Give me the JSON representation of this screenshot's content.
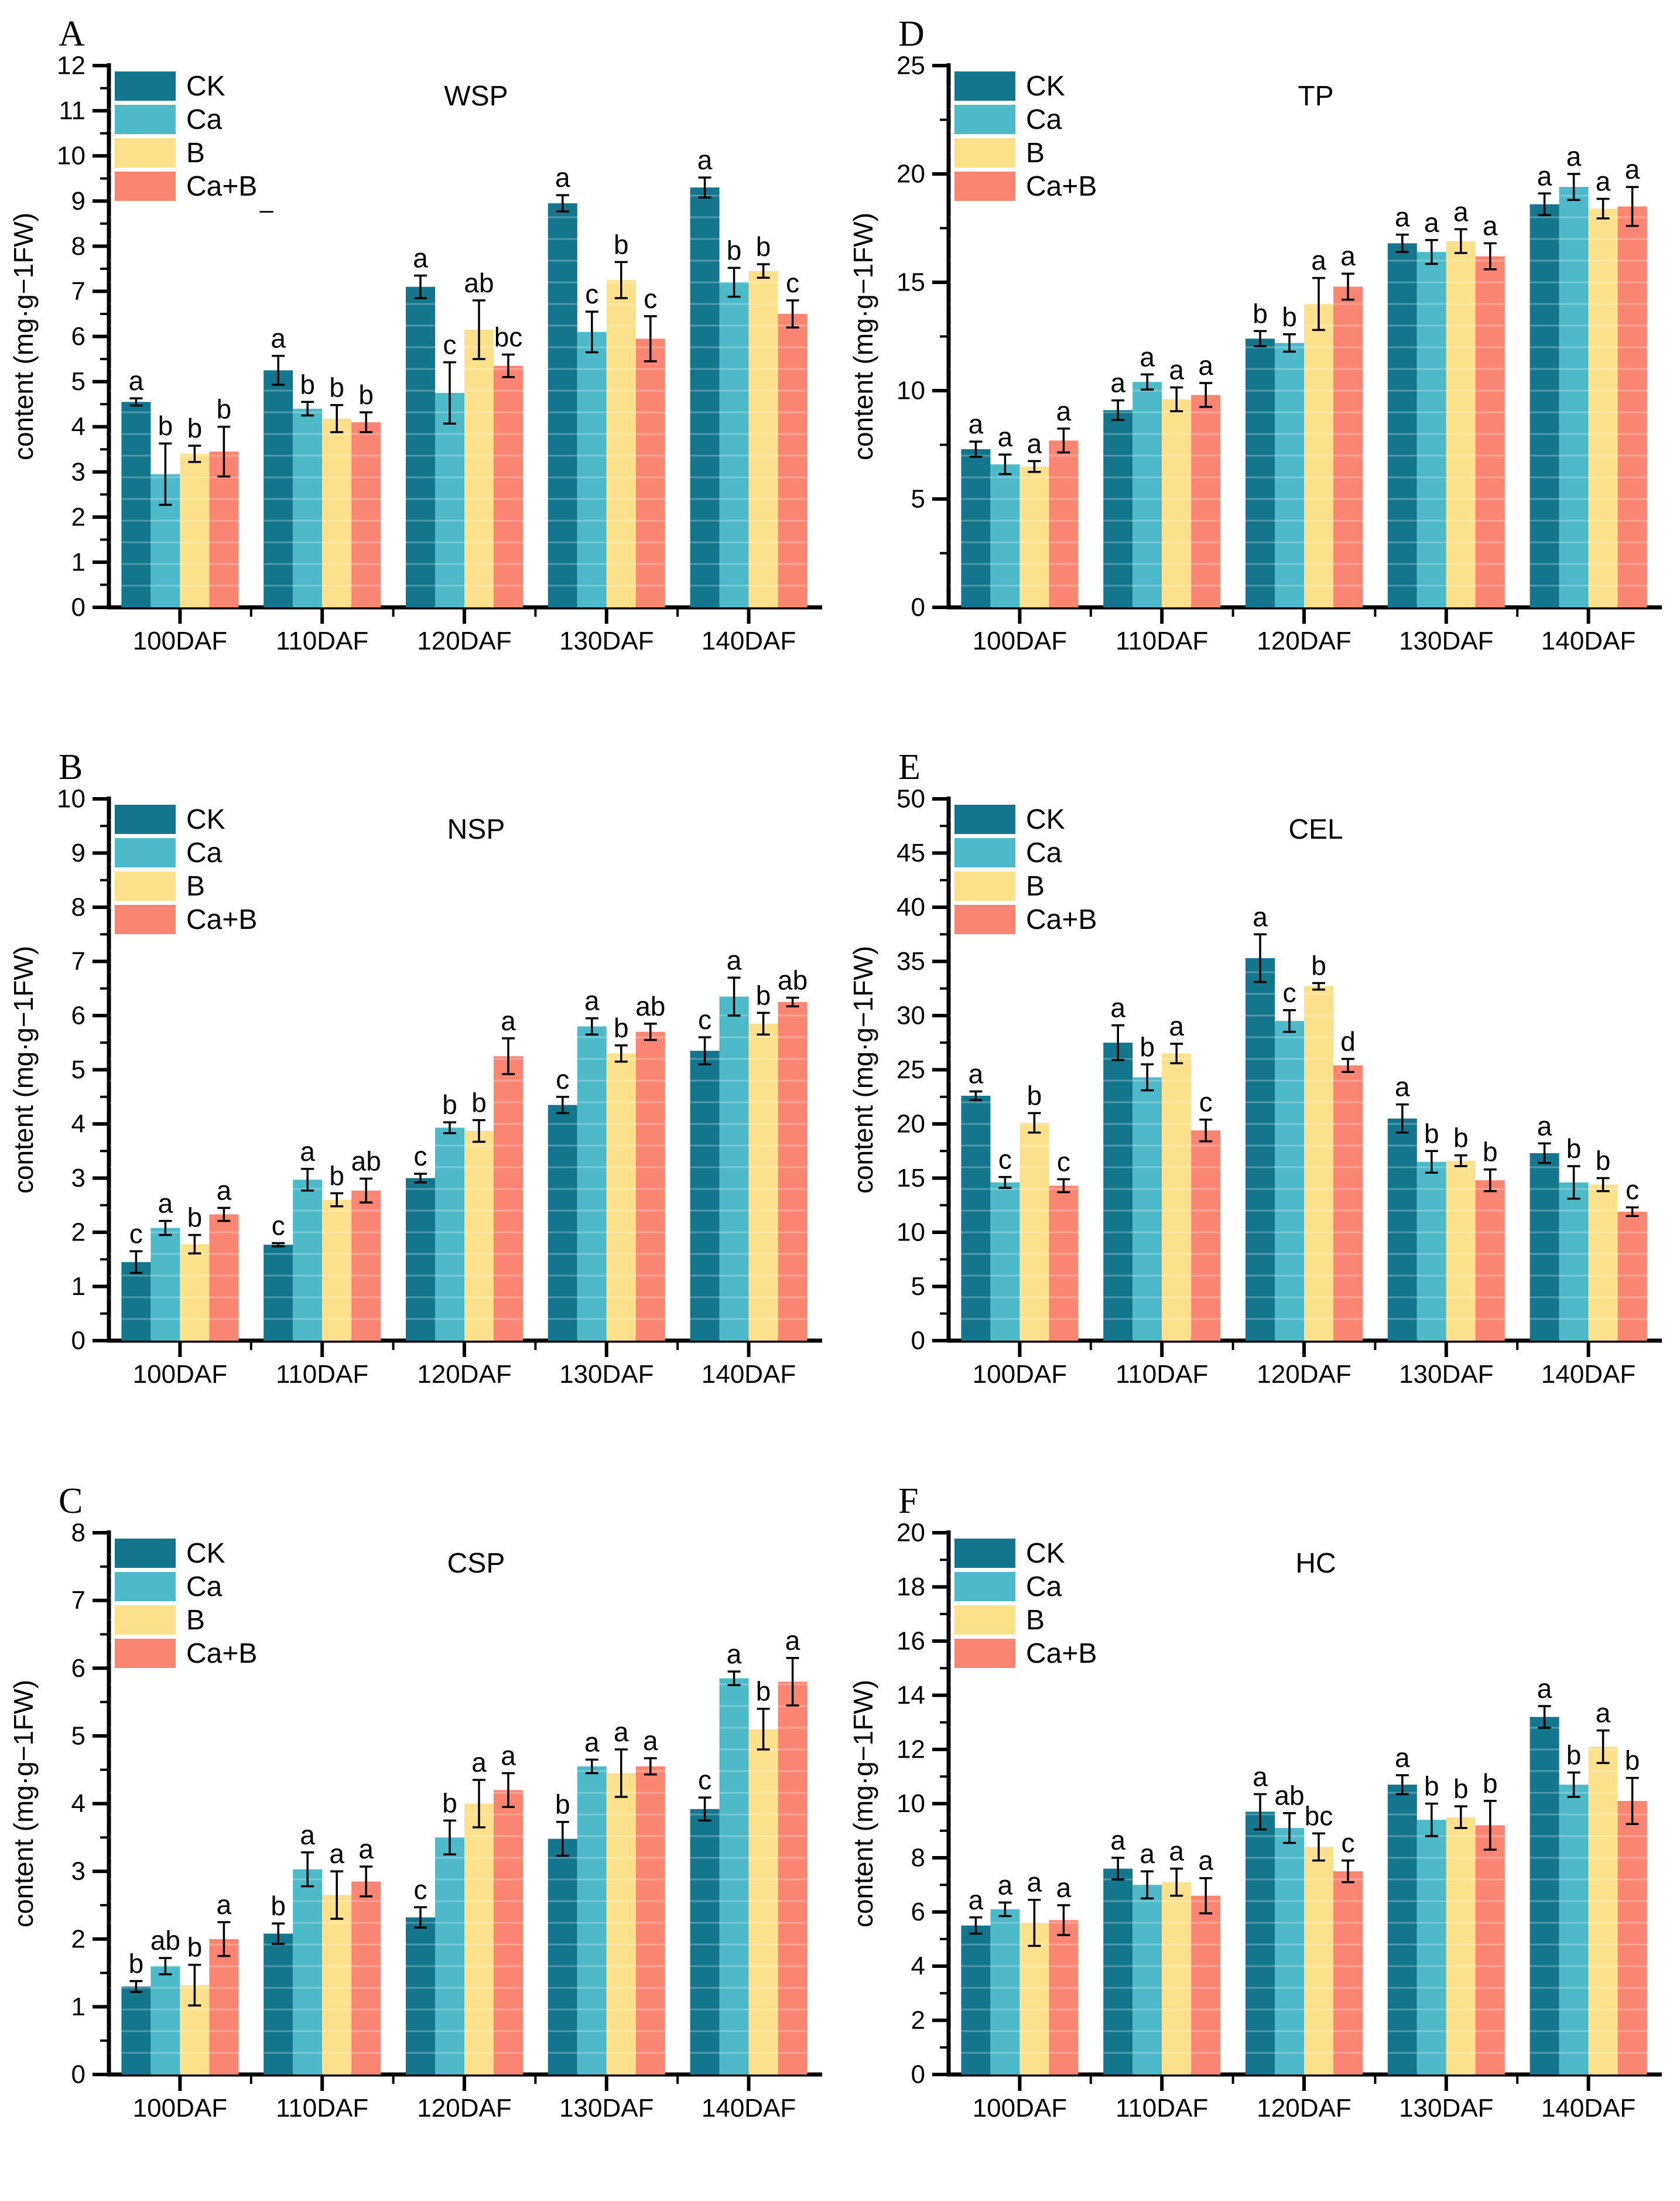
{
  "figure": {
    "y_axis_label": "content (mg·g−1FW)",
    "categories": [
      "100DAF",
      "110DAF",
      "120DAF",
      "130DAF",
      "140DAF"
    ],
    "legend": [
      "CK",
      "Ca",
      "B",
      "Ca+B"
    ],
    "colors": {
      "CK": "#14768d",
      "Ca": "#4db9c9",
      "B": "#fce08c",
      "Ca+B": "#fa8572"
    },
    "error_bar_color": "#000000",
    "stray_dash": "–"
  },
  "chart_data": [
    {
      "type": "bar",
      "panel_letter": "A",
      "title": "WSP",
      "xlabel": "",
      "ylabel": "content (mg·g−1FW)",
      "ylim": [
        0,
        12
      ],
      "y_major": 1,
      "y_minor": 0.5,
      "grid": false,
      "legend_position": "top-left",
      "categories": [
        "100DAF",
        "110DAF",
        "120DAF",
        "130DAF",
        "140DAF"
      ],
      "has_stray_dash": true,
      "series": [
        {
          "name": "CK",
          "values": [
            4.55,
            5.25,
            7.1,
            8.95,
            9.3
          ],
          "errors": [
            0.08,
            0.32,
            0.25,
            0.18,
            0.22
          ],
          "letters": [
            "a",
            "a",
            "a",
            "a",
            "a"
          ]
        },
        {
          "name": "Ca",
          "values": [
            2.95,
            4.4,
            4.75,
            6.1,
            7.2
          ],
          "errors": [
            0.68,
            0.15,
            0.68,
            0.45,
            0.32
          ],
          "letters": [
            "b",
            "b",
            "c",
            "c",
            "b"
          ]
        },
        {
          "name": "B",
          "values": [
            3.4,
            4.18,
            6.15,
            7.25,
            7.45
          ],
          "errors": [
            0.18,
            0.3,
            0.65,
            0.4,
            0.15
          ],
          "letters": [
            "b",
            "b",
            "ab",
            "b",
            "b"
          ]
        },
        {
          "name": "Ca+B",
          "values": [
            3.45,
            4.1,
            5.35,
            5.95,
            6.5
          ],
          "errors": [
            0.55,
            0.22,
            0.25,
            0.5,
            0.3
          ],
          "letters": [
            "b",
            "b",
            "bc",
            "c",
            "c"
          ]
        }
      ]
    },
    {
      "type": "bar",
      "panel_letter": "D",
      "title": "TP",
      "xlabel": "",
      "ylabel": "content (mg·g−1FW)",
      "ylim": [
        0,
        25
      ],
      "y_major": 5,
      "y_minor": 2.5,
      "grid": false,
      "legend_position": "top-left",
      "categories": [
        "100DAF",
        "110DAF",
        "120DAF",
        "130DAF",
        "140DAF"
      ],
      "has_stray_dash": false,
      "series": [
        {
          "name": "CK",
          "values": [
            7.3,
            9.1,
            12.4,
            16.8,
            18.6
          ],
          "errors": [
            0.35,
            0.45,
            0.35,
            0.4,
            0.5
          ],
          "letters": [
            "a",
            "a",
            "b",
            "a",
            "a"
          ]
        },
        {
          "name": "Ca",
          "values": [
            6.6,
            10.4,
            12.2,
            16.4,
            19.4
          ],
          "errors": [
            0.45,
            0.35,
            0.4,
            0.55,
            0.6
          ],
          "letters": [
            "a",
            "a",
            "b",
            "a",
            "a"
          ]
        },
        {
          "name": "B",
          "values": [
            6.5,
            9.6,
            14.0,
            16.9,
            18.4
          ],
          "errors": [
            0.25,
            0.55,
            1.2,
            0.55,
            0.45
          ],
          "letters": [
            "a",
            "a",
            "a",
            "a",
            "a"
          ]
        },
        {
          "name": "Ca+B",
          "values": [
            7.7,
            9.8,
            14.8,
            16.2,
            18.5
          ],
          "errors": [
            0.55,
            0.55,
            0.6,
            0.6,
            0.9
          ],
          "letters": [
            "a",
            "a",
            "a",
            "a",
            "a"
          ]
        }
      ]
    },
    {
      "type": "bar",
      "panel_letter": "B",
      "title": "NSP",
      "xlabel": "",
      "ylabel": "content (mg·g−1FW)",
      "ylim": [
        0,
        10
      ],
      "y_major": 1,
      "y_minor": 0.5,
      "grid": false,
      "legend_position": "top-left",
      "categories": [
        "100DAF",
        "110DAF",
        "120DAF",
        "130DAF",
        "140DAF"
      ],
      "has_stray_dash": false,
      "series": [
        {
          "name": "CK",
          "values": [
            1.45,
            1.77,
            3.0,
            4.35,
            5.35
          ],
          "errors": [
            0.2,
            0.03,
            0.08,
            0.15,
            0.25
          ],
          "letters": [
            "c",
            "c",
            "c",
            "c",
            "c"
          ]
        },
        {
          "name": "Ca",
          "values": [
            2.08,
            2.97,
            3.93,
            5.8,
            6.35
          ],
          "errors": [
            0.13,
            0.2,
            0.1,
            0.15,
            0.35
          ],
          "letters": [
            "a",
            "a",
            "b",
            "a",
            "a"
          ]
        },
        {
          "name": "B",
          "values": [
            1.78,
            2.6,
            3.87,
            5.3,
            5.85
          ],
          "errors": [
            0.17,
            0.12,
            0.2,
            0.15,
            0.2
          ],
          "letters": [
            "b",
            "b",
            "b",
            "b",
            "b"
          ]
        },
        {
          "name": "Ca+B",
          "values": [
            2.33,
            2.77,
            5.25,
            5.7,
            6.25
          ],
          "errors": [
            0.12,
            0.22,
            0.33,
            0.15,
            0.08
          ],
          "letters": [
            "a",
            "ab",
            "a",
            "ab",
            "ab"
          ]
        }
      ]
    },
    {
      "type": "bar",
      "panel_letter": "E",
      "title": "CEL",
      "xlabel": "",
      "ylabel": "content (mg·g−1FW)",
      "ylim": [
        0,
        50
      ],
      "y_major": 5,
      "y_minor": 2.5,
      "grid": false,
      "legend_position": "top-left",
      "categories": [
        "100DAF",
        "110DAF",
        "120DAF",
        "130DAF",
        "140DAF"
      ],
      "has_stray_dash": false,
      "series": [
        {
          "name": "CK",
          "values": [
            22.6,
            27.5,
            35.3,
            20.5,
            17.3
          ],
          "errors": [
            0.4,
            1.6,
            2.2,
            1.3,
            0.9
          ],
          "letters": [
            "a",
            "a",
            "a",
            "a",
            "a"
          ]
        },
        {
          "name": "Ca",
          "values": [
            14.6,
            24.3,
            29.5,
            16.5,
            14.6
          ],
          "errors": [
            0.5,
            1.2,
            1.0,
            1.0,
            1.5
          ],
          "letters": [
            "c",
            "b",
            "c",
            "b",
            "b"
          ]
        },
        {
          "name": "B",
          "values": [
            20.1,
            26.5,
            32.7,
            16.6,
            14.4
          ],
          "errors": [
            0.9,
            0.9,
            0.3,
            0.5,
            0.6
          ],
          "letters": [
            "b",
            "a",
            "b",
            "b",
            "b"
          ]
        },
        {
          "name": "Ca+B",
          "values": [
            14.3,
            19.4,
            25.4,
            14.8,
            11.9
          ],
          "errors": [
            0.6,
            1.0,
            0.6,
            1.0,
            0.4
          ],
          "letters": [
            "c",
            "c",
            "d",
            "b",
            "c"
          ]
        }
      ]
    },
    {
      "type": "bar",
      "panel_letter": "C",
      "title": "CSP",
      "xlabel": "",
      "ylabel": "content (mg·g−1FW)",
      "ylim": [
        0,
        8
      ],
      "y_major": 1,
      "y_minor": 0.5,
      "grid": false,
      "legend_position": "top-left",
      "categories": [
        "100DAF",
        "110DAF",
        "120DAF",
        "130DAF",
        "140DAF"
      ],
      "has_stray_dash": false,
      "series": [
        {
          "name": "CK",
          "values": [
            1.3,
            2.08,
            2.32,
            3.48,
            3.92
          ],
          "errors": [
            0.08,
            0.15,
            0.15,
            0.25,
            0.17
          ],
          "letters": [
            "b",
            "b",
            "c",
            "b",
            "c"
          ]
        },
        {
          "name": "Ca",
          "values": [
            1.6,
            3.03,
            3.5,
            4.55,
            5.85
          ],
          "errors": [
            0.12,
            0.25,
            0.25,
            0.1,
            0.1
          ],
          "letters": [
            "ab",
            "a",
            "b",
            "a",
            "a"
          ]
        },
        {
          "name": "B",
          "values": [
            1.32,
            2.65,
            4.0,
            4.45,
            5.1
          ],
          "errors": [
            0.3,
            0.35,
            0.35,
            0.35,
            0.3
          ],
          "letters": [
            "b",
            "a",
            "a",
            "a",
            "b"
          ]
        },
        {
          "name": "Ca+B",
          "values": [
            2.0,
            2.85,
            4.2,
            4.55,
            5.8
          ],
          "errors": [
            0.25,
            0.22,
            0.25,
            0.12,
            0.35
          ],
          "letters": [
            "a",
            "a",
            "a",
            "a",
            "a"
          ]
        }
      ]
    },
    {
      "type": "bar",
      "panel_letter": "F",
      "title": "HC",
      "xlabel": "",
      "ylabel": "content (mg·g−1FW)",
      "ylim": [
        0,
        20
      ],
      "y_major": 2,
      "y_minor": 1,
      "grid": false,
      "legend_position": "top-left",
      "categories": [
        "100DAF",
        "110DAF",
        "120DAF",
        "130DAF",
        "140DAF"
      ],
      "has_stray_dash": false,
      "series": [
        {
          "name": "CK",
          "values": [
            5.5,
            7.6,
            9.7,
            10.7,
            13.2
          ],
          "errors": [
            0.3,
            0.4,
            0.65,
            0.35,
            0.4
          ],
          "letters": [
            "a",
            "a",
            "a",
            "a",
            "a"
          ]
        },
        {
          "name": "Ca",
          "values": [
            6.1,
            7.0,
            9.1,
            9.4,
            10.7
          ],
          "errors": [
            0.25,
            0.5,
            0.55,
            0.6,
            0.45
          ],
          "letters": [
            "a",
            "a",
            "ab",
            "b",
            "b"
          ]
        },
        {
          "name": "B",
          "values": [
            5.6,
            7.1,
            8.4,
            9.5,
            12.1
          ],
          "errors": [
            0.85,
            0.5,
            0.5,
            0.4,
            0.6
          ],
          "letters": [
            "a",
            "a",
            "bc",
            "b",
            "a"
          ]
        },
        {
          "name": "Ca+B",
          "values": [
            5.7,
            6.6,
            7.5,
            9.2,
            10.1
          ],
          "errors": [
            0.55,
            0.65,
            0.4,
            0.9,
            0.85
          ],
          "letters": [
            "a",
            "a",
            "c",
            "b",
            "b"
          ]
        }
      ]
    }
  ]
}
